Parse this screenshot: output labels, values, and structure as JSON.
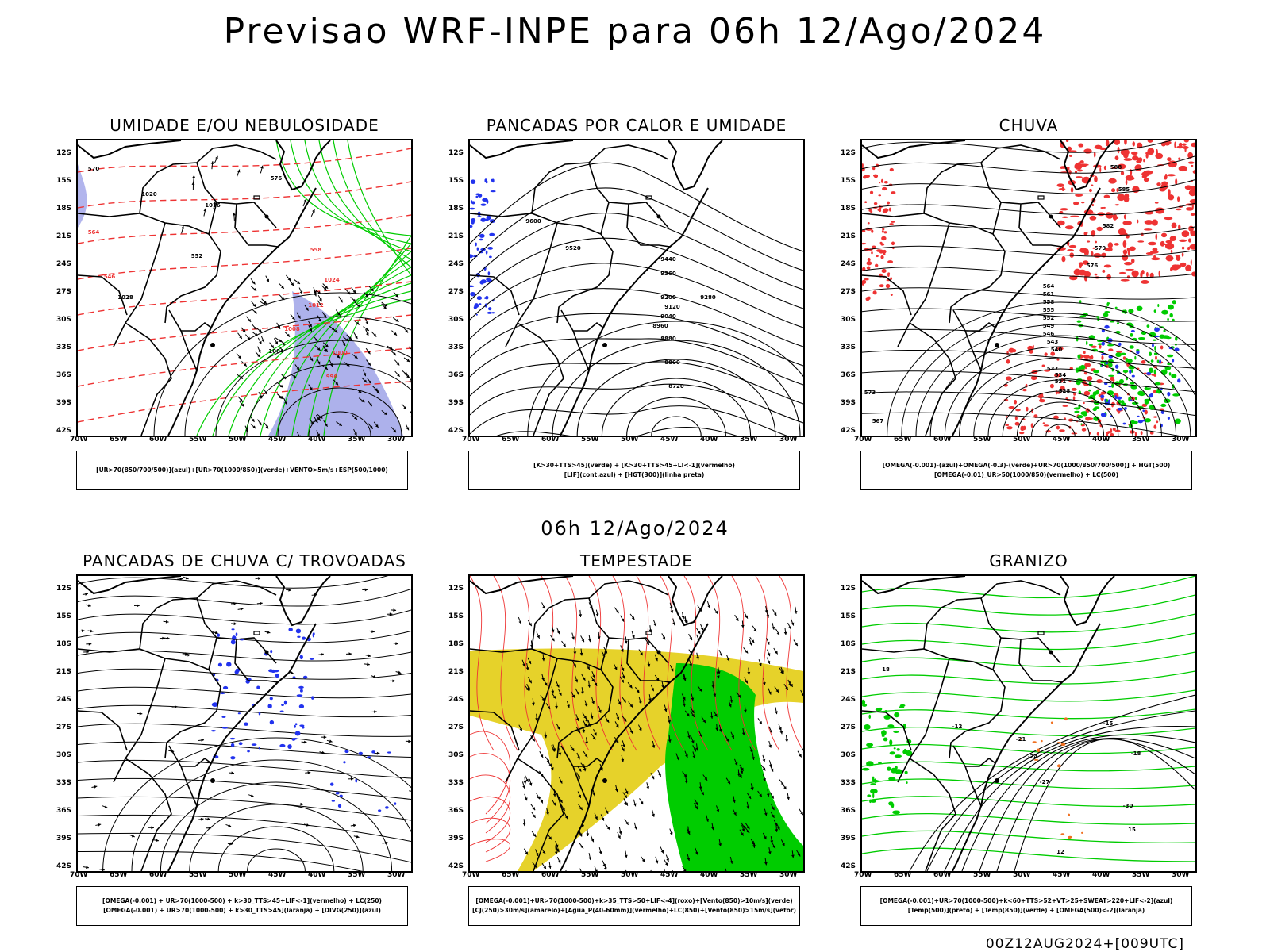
{
  "title": "Previsao WRF-INPE  para 06h 12/Ago/2024",
  "mid_title": "06h 12/Ago/2024",
  "footer": "00Z12AUG2024+[009UTC]",
  "lat_labels": [
    "12S",
    "15S",
    "18S",
    "21S",
    "24S",
    "27S",
    "30S",
    "33S",
    "36S",
    "39S",
    "42S"
  ],
  "lon_labels": [
    "70W",
    "65W",
    "60W",
    "55W",
    "50W",
    "45W",
    "40W",
    "35W",
    "30W"
  ],
  "panels": [
    {
      "title": "UMIDADE E/OU NEBULOSIDADE",
      "legend": [
        "[UR>70(850/700/500)](azul)+[UR>70(1000/850)](verde)+VENTO>5m/s+ESP(500/1000)"
      ],
      "contour_labels": [
        "570",
        "576",
        "1020",
        "1016",
        "564",
        "558",
        "552",
        "546",
        "1024",
        "1028",
        "1012",
        "1008",
        "1004",
        "1000",
        "996"
      ]
    },
    {
      "title": "PANCADAS POR CALOR E UMIDADE",
      "legend": [
        "[K>30+TTS>45](verde) + [K>30+TTS>45+LI<-1](vermelho)",
        "[LIF](cont.azul) + [HGT(300)](linha preta)"
      ],
      "contour_labels": [
        "9600",
        "9520",
        "9440",
        "9360",
        "9280",
        "9200",
        "9120",
        "9040",
        "8960",
        "8880",
        "8800",
        "8720"
      ]
    },
    {
      "title": "CHUVA",
      "legend": [
        "[OMEGA(-0.001)-(azul)+OMEGA(-0.3)-(verde)+UR>70(1000/850/700/500)] + HGT(500)",
        "[OMEGA(-0.01)_UR>50(1000/850)(vermelho) + LC(500)"
      ],
      "contour_labels": [
        "588",
        "585",
        "582",
        "579",
        "576",
        "573",
        "567",
        "564",
        "561",
        "558",
        "555",
        "552",
        "549",
        "546",
        "543",
        "540",
        "537",
        "534",
        "531",
        "528"
      ]
    },
    {
      "title": "PANCADAS DE CHUVA C/ TROVOADAS",
      "legend": [
        "[OMEGA(-0.001) + UR>70(1000-500) + k>30_TTS>45+LIF<-1](vermelho) + LC(250)",
        "[OMEGA(-0.001) + UR>70(1000-500) + k>30_TTS>45](laranja) + [DIVG(250)](azul)"
      ],
      "contour_labels": []
    },
    {
      "title": "TEMPESTADE",
      "legend": [
        "[OMEGA(-0.001)+UR>70(1000-500)+k>35_TTS>50+LIF<-4](roxo)+[Vento(850)>10m/s](verde)",
        "[CJ(250)>30m/s](amarelo)+[Agua_P(40-60mm)](vermelho)+LC(850)+[Vento(850)>15m/s](vetor)"
      ],
      "contour_labels": []
    },
    {
      "title": "GRANIZO",
      "legend": [
        "[OMEGA(-0.001)+UR>70(1000-500)+k<60+TTS>52+VT>25+SWEAT>220+LIF<-2](azul)",
        "[Temp(500)](preto) + [Temp(850)](verde) + [OMEGA(500)<-2](laranja)"
      ],
      "contour_labels": [
        "-12",
        "-15",
        "-18",
        "-21",
        "-24",
        "-27",
        "-30",
        "15",
        "12",
        "18"
      ]
    }
  ],
  "colors": {
    "blue": "#2233ee",
    "green": "#00cc00",
    "red": "#ee3333",
    "yellow": "#e6d22a",
    "lavender": "#9fa3e8",
    "orange": "#f07020"
  }
}
